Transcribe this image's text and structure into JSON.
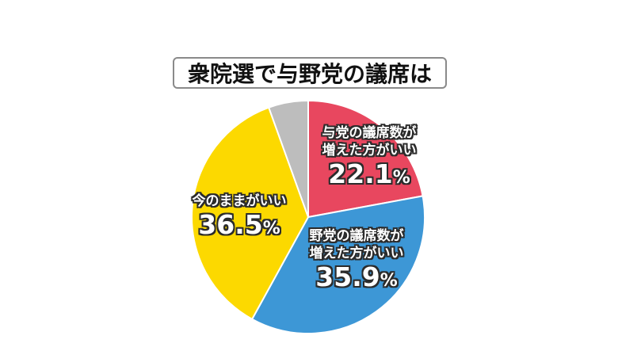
{
  "title": "衆院選で与野党の議席は",
  "chart_data": {
    "type": "pie",
    "title": "衆院選で与野党の議席は",
    "start_angle": "12 o'clock",
    "direction": "clockwise",
    "slices": [
      {
        "label": "与党の議席数が増えた方がいい",
        "lines": [
          "与党の議席数が",
          "増えた方がいい"
        ],
        "value": 22.1,
        "display": "22.1",
        "color": "#e8475f"
      },
      {
        "label": "野党の議席数が増えた方がいい",
        "lines": [
          "野党の議席数が",
          "増えた方がいい"
        ],
        "value": 35.9,
        "display": "35.9",
        "color": "#3d97d6"
      },
      {
        "label": "今のままがいい",
        "lines": [
          "今のままがいい"
        ],
        "value": 36.5,
        "display": "36.5",
        "color": "#fcd900"
      },
      {
        "label": "",
        "lines": [],
        "value": 5.5,
        "display": "",
        "color": "#bdbdbd"
      }
    ],
    "percent_sign": "%",
    "legend": "none (labels inside slices)"
  }
}
